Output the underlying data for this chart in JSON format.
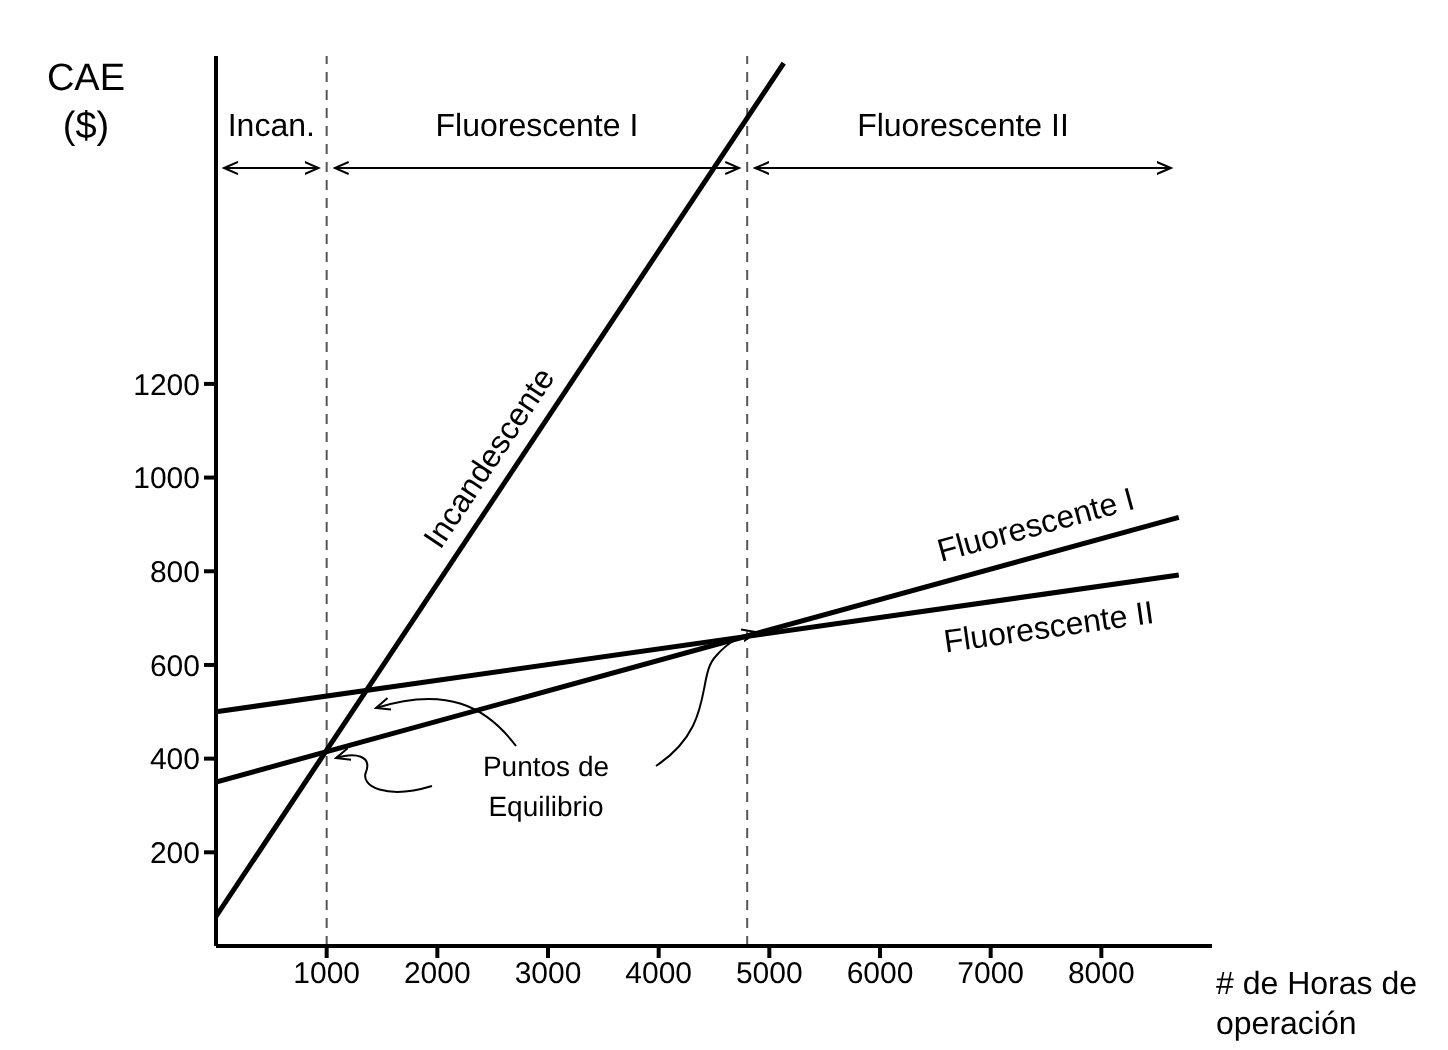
{
  "chart_data": {
    "type": "line",
    "ylabel": "CAE ($)",
    "xlabel": "# de Horas de operación",
    "xlim": [
      0,
      9000
    ],
    "xticks": [
      1000,
      2000,
      3000,
      4000,
      5000,
      6000,
      7000,
      8000
    ],
    "ylim": [
      0,
      1900
    ],
    "yticks": [
      200,
      400,
      600,
      800,
      1000,
      1200
    ],
    "series": [
      {
        "name": "Incandescente",
        "color": "#000000",
        "x": [
          0,
          5130
        ],
        "values": [
          63,
          1885
        ]
      },
      {
        "name": "Fluorescente I",
        "color": "#000000",
        "x": [
          0,
          8700
        ],
        "values": [
          350,
          915
        ]
      },
      {
        "name": "Fluorescente II",
        "color": "#000000",
        "x": [
          0,
          8700
        ],
        "values": [
          500,
          792
        ]
      }
    ],
    "ref_lines": [
      {
        "axis": "x",
        "value": 1000,
        "line_style": "dashed",
        "color": "#555555"
      },
      {
        "axis": "x",
        "value": 4800,
        "line_style": "dashed",
        "color": "#555555"
      }
    ],
    "annotations": [
      "Incan.",
      "Fluorescente I",
      "Fluorescente II",
      "Puntos de Equilibrio"
    ],
    "grid": false,
    "legend": false
  }
}
